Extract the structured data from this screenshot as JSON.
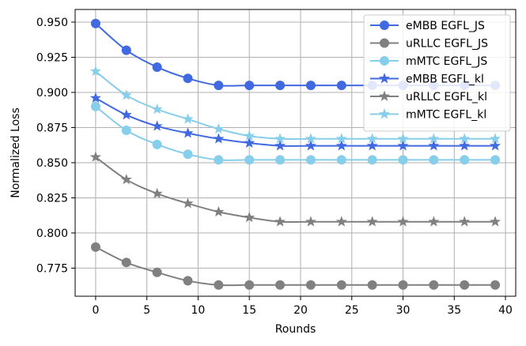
{
  "chart_data": {
    "type": "line",
    "xlabel": "Rounds",
    "ylabel": "Normalized Loss",
    "xlim": [
      -2,
      41
    ],
    "ylim": [
      0.755,
      0.959
    ],
    "xticks": [
      0,
      5,
      10,
      15,
      20,
      25,
      30,
      35,
      40
    ],
    "yticks": [
      0.775,
      0.8,
      0.825,
      0.85,
      0.875,
      0.9,
      0.925,
      0.95
    ],
    "ytick_labels": [
      "0.775",
      "0.800",
      "0.825",
      "0.850",
      "0.875",
      "0.900",
      "0.925",
      "0.950"
    ],
    "grid": true,
    "legend_position": "top-right",
    "marker_x": [
      0,
      3,
      6,
      9,
      12,
      15,
      18,
      21,
      24,
      27,
      30,
      33,
      36,
      39
    ],
    "series": [
      {
        "name": "eMBB EGFL_JS",
        "color": "#4169e1",
        "marker": "circle",
        "values": [
          0.949,
          0.93,
          0.918,
          0.91,
          0.905,
          0.905,
          0.905,
          0.905,
          0.905,
          0.905,
          0.905,
          0.905,
          0.905,
          0.905
        ]
      },
      {
        "name": "uRLLC EGFL_JS",
        "color": "#808080",
        "marker": "circle",
        "values": [
          0.79,
          0.779,
          0.772,
          0.766,
          0.763,
          0.763,
          0.763,
          0.763,
          0.763,
          0.763,
          0.763,
          0.763,
          0.763,
          0.763
        ]
      },
      {
        "name": "mMTC EGFL_JS",
        "color": "#87ceeb",
        "marker": "circle",
        "values": [
          0.89,
          0.873,
          0.863,
          0.856,
          0.852,
          0.852,
          0.852,
          0.852,
          0.852,
          0.852,
          0.852,
          0.852,
          0.852,
          0.852
        ]
      },
      {
        "name": "eMBB EGFL_kl",
        "color": "#4169e1",
        "marker": "star",
        "values": [
          0.896,
          0.884,
          0.876,
          0.871,
          0.867,
          0.864,
          0.862,
          0.862,
          0.862,
          0.862,
          0.862,
          0.862,
          0.862,
          0.862
        ]
      },
      {
        "name": "uRLLC EGFL_kl",
        "color": "#808080",
        "marker": "star",
        "values": [
          0.854,
          0.838,
          0.828,
          0.821,
          0.815,
          0.811,
          0.808,
          0.808,
          0.808,
          0.808,
          0.808,
          0.808,
          0.808,
          0.808
        ]
      },
      {
        "name": "mMTC EGFL_kl",
        "color": "#87ceeb",
        "marker": "star",
        "values": [
          0.915,
          0.898,
          0.888,
          0.881,
          0.874,
          0.869,
          0.867,
          0.867,
          0.867,
          0.867,
          0.867,
          0.867,
          0.867,
          0.867
        ]
      }
    ]
  }
}
